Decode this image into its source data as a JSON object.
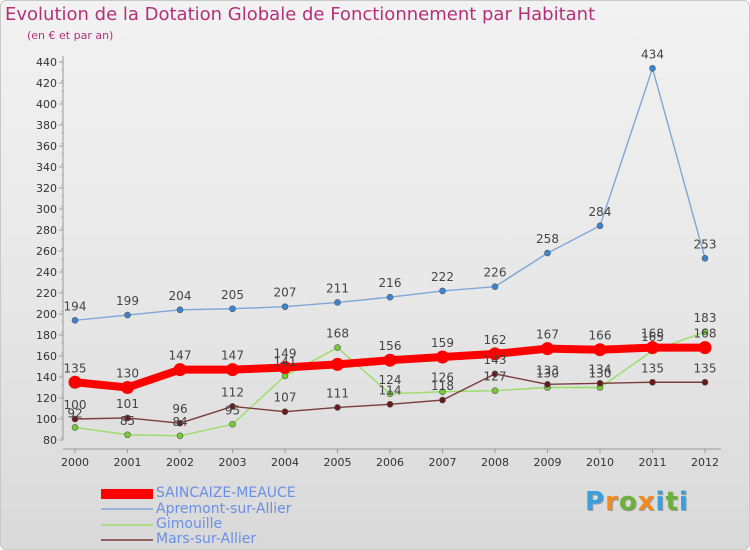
{
  "chart_data": {
    "type": "line",
    "title": "Evolution de la Dotation Globale de Fonctionnement par Habitant",
    "subtitle": "(en € et par an)",
    "xlabel": "",
    "ylabel": "",
    "ylim": [
      80,
      440
    ],
    "ytick_step": 20,
    "grid": false,
    "legend_position": "bottom-left",
    "categories": [
      "2000",
      "2001",
      "2002",
      "2003",
      "2004",
      "2005",
      "2006",
      "2007",
      "2008",
      "2009",
      "2010",
      "2011",
      "2012"
    ],
    "series": [
      {
        "name": "SAINCAIZE-MEAUCE",
        "color": "#ff0000",
        "point_color": "#ff0000",
        "values": [
          135,
          130,
          147,
          147,
          149,
          152,
          156,
          159,
          162,
          167,
          166,
          168,
          168
        ],
        "labels": [
          "135",
          "130",
          "147",
          "147",
          "149",
          "",
          "156",
          "159",
          "162",
          "167",
          "166",
          "168",
          "168"
        ]
      },
      {
        "name": "Apremont-sur-Allier",
        "color": "#7ea7d8",
        "point_color": "#3a86d0",
        "values": [
          194,
          199,
          204,
          205,
          207,
          211,
          216,
          222,
          226,
          258,
          284,
          434,
          253
        ],
        "labels": [
          "194",
          "199",
          "204",
          "205",
          "207",
          "211",
          "216",
          "222",
          "226",
          "258",
          "284",
          "434",
          "253"
        ]
      },
      {
        "name": "Gimouille",
        "color": "#99dd66",
        "point_color": "#77cc33",
        "values": [
          92,
          85,
          84,
          95,
          141,
          168,
          124,
          126,
          127,
          130,
          130,
          165,
          183
        ],
        "labels": [
          "92",
          "85",
          "84",
          "95",
          "141",
          "168",
          "124",
          "126",
          "127",
          "130",
          "130",
          "165",
          "183"
        ]
      },
      {
        "name": "Mars-sur-Allier",
        "color": "#7a3b3b",
        "point_color": "#6b1a1a",
        "values": [
          100,
          101,
          96,
          112,
          107,
          111,
          114,
          118,
          143,
          133,
          134,
          135,
          135
        ],
        "labels": [
          "100",
          "101",
          "96",
          "112",
          "107",
          "111",
          "114",
          "118",
          "143",
          "133",
          "134",
          "135",
          "135"
        ]
      }
    ]
  },
  "branding": {
    "logo_text": "Proxiti",
    "logo_colors": [
      "#3aa0dd",
      "#f08a1e",
      "#6ab23c",
      "#f08a1e",
      "#3aa0dd",
      "#6ab23c",
      "#3aa0dd"
    ]
  }
}
